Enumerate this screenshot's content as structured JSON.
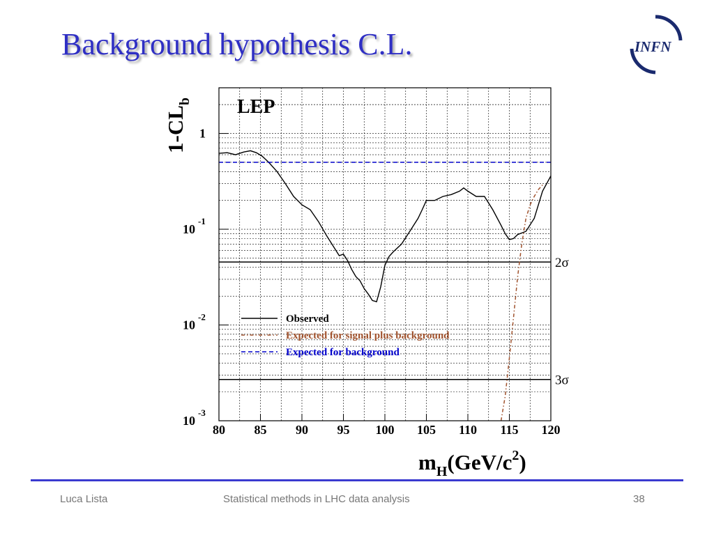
{
  "slide": {
    "title": "Background hypothesis C.L.",
    "logo_text": "INFN"
  },
  "footer": {
    "author": "Luca Lista",
    "course": "Statistical methods in LHC data analysis",
    "page": "38"
  },
  "colors": {
    "title": "#2f2fc4",
    "observed": "#000000",
    "signal_plus_background": "#a0522d",
    "background": "#0000cc",
    "footer_rule": "#3a3ad0"
  },
  "chart_data": {
    "type": "line",
    "title": "LEP",
    "xlabel": "m",
    "xlabel_sub": "H",
    "xlabel_unit_pre": "(GeV/c",
    "xlabel_unit_sup": "2",
    "xlabel_unit_post": ")",
    "ylabel": "1-CL",
    "ylabel_sub": "b",
    "xlim": [
      80,
      120
    ],
    "ylim": [
      0.001,
      3.0
    ],
    "yscale": "log",
    "grid": true,
    "x_ticks": [
      "80",
      "85",
      "90",
      "95",
      "100",
      "105",
      "110",
      "115",
      "120"
    ],
    "y_ticks": [
      {
        "value": 1,
        "base": "1",
        "exp": ""
      },
      {
        "value": 0.1,
        "base": "10",
        "exp": "-1"
      },
      {
        "value": 0.01,
        "base": "10",
        "exp": "-2"
      },
      {
        "value": 0.001,
        "base": "10",
        "exp": "-3"
      }
    ],
    "hlines": [
      {
        "y": 0.0455,
        "label": "2σ"
      },
      {
        "y": 0.0027,
        "label": "3σ"
      }
    ],
    "legend_position": "bottom-left",
    "series": [
      {
        "name": "Observed",
        "style": "solid",
        "x": [
          80,
          81,
          82,
          83,
          83.8,
          84.5,
          85.2,
          86,
          87,
          88,
          89,
          90,
          91,
          92,
          93,
          94,
          94.5,
          95,
          95.5,
          96,
          96.5,
          97,
          97.5,
          98,
          98.5,
          99,
          99.5,
          100,
          100.5,
          101,
          102,
          103,
          104,
          104.5,
          105,
          106,
          107,
          108,
          109,
          109.5,
          110,
          111,
          112,
          113,
          114,
          114.5,
          115,
          115.5,
          116,
          117,
          118,
          119,
          120
        ],
        "y": [
          0.62,
          0.63,
          0.6,
          0.64,
          0.66,
          0.63,
          0.58,
          0.5,
          0.4,
          0.3,
          0.22,
          0.18,
          0.16,
          0.12,
          0.085,
          0.062,
          0.053,
          0.055,
          0.047,
          0.038,
          0.032,
          0.029,
          0.024,
          0.021,
          0.018,
          0.0175,
          0.025,
          0.042,
          0.052,
          0.058,
          0.07,
          0.095,
          0.13,
          0.16,
          0.2,
          0.2,
          0.22,
          0.23,
          0.25,
          0.27,
          0.25,
          0.22,
          0.22,
          0.16,
          0.11,
          0.09,
          0.078,
          0.08,
          0.088,
          0.095,
          0.13,
          0.25,
          0.36
        ]
      },
      {
        "name": "Expected for signal plus background",
        "style": "dash-dot",
        "x": [
          114.0,
          114.5,
          115.0,
          115.5,
          116.0,
          116.5,
          117.0,
          117.5,
          118.0,
          118.5,
          119.0
        ],
        "y": [
          0.001,
          0.0018,
          0.0045,
          0.012,
          0.032,
          0.07,
          0.13,
          0.18,
          0.22,
          0.26,
          0.29
        ]
      },
      {
        "name": "Expected for background",
        "style": "dashed",
        "x": [
          80,
          120
        ],
        "y": [
          0.5,
          0.5
        ]
      }
    ]
  }
}
